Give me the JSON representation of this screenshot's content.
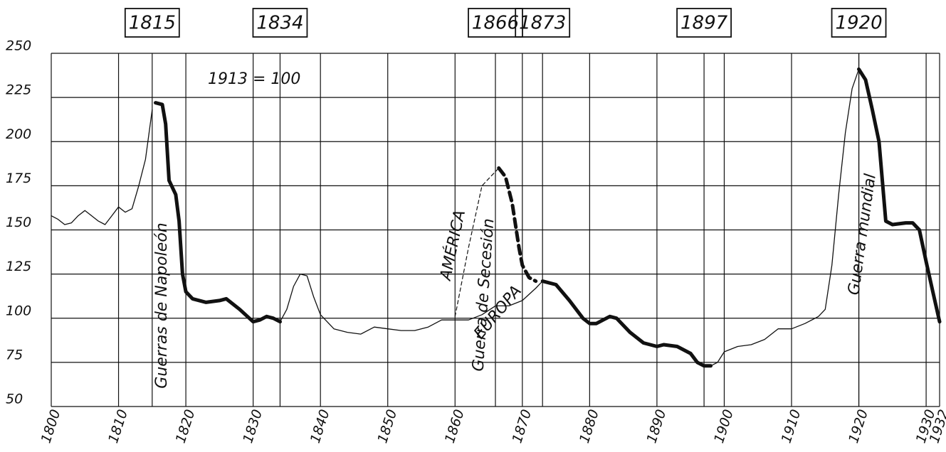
{
  "chart_data": {
    "type": "line",
    "xlim": [
      1800,
      1932
    ],
    "ylim": [
      50,
      250
    ],
    "xticks": [
      1800,
      1810,
      1820,
      1830,
      1840,
      1850,
      1860,
      1870,
      1880,
      1890,
      1900,
      1910,
      1920,
      1930,
      1932
    ],
    "yticks": [
      50,
      75,
      100,
      125,
      150,
      175,
      200,
      225,
      250
    ],
    "xmarkers": [
      1815,
      1834,
      1866,
      1873,
      1897,
      1920
    ],
    "grid": true,
    "annotations": [
      "1913 = 100",
      "Guerras de Napoleón",
      "AMÉRICA",
      "EUROPA",
      "Guerra de Secesión",
      "Guerra mundial"
    ],
    "series": [
      {
        "color": "#111",
        "width": 1.3,
        "dash": false,
        "x": [
          1800,
          1801,
          1802,
          1803,
          1804,
          1805,
          1806,
          1807,
          1808,
          1809,
          1810,
          1811,
          1812,
          1813,
          1814,
          1815
        ],
        "values": [
          158,
          156,
          153,
          154,
          158,
          161,
          158,
          155,
          153,
          158,
          163,
          160,
          162,
          175,
          190,
          218
        ]
      },
      {
        "color": "#111",
        "width": 5,
        "dash": false,
        "x": [
          1815.5,
          1816.5,
          1817,
          1817.5,
          1818.5,
          1819,
          1819.5,
          1820,
          1821,
          1823,
          1825,
          1826,
          1828,
          1830,
          1831,
          1832,
          1833,
          1834
        ],
        "values": [
          222,
          221,
          210,
          178,
          170,
          155,
          125,
          115,
          111,
          109,
          110,
          111,
          105,
          98,
          99,
          101,
          100,
          98
        ]
      },
      {
        "color": "#111",
        "width": 1.3,
        "dash": false,
        "x": [
          1834,
          1835,
          1836,
          1837,
          1838,
          1839,
          1840,
          1841,
          1842,
          1844,
          1846,
          1848,
          1850,
          1852,
          1854,
          1856,
          1858,
          1860,
          1862,
          1864,
          1866,
          1868,
          1870,
          1872,
          1873
        ],
        "values": [
          98,
          105,
          118,
          125,
          124,
          112,
          102,
          98,
          94,
          92,
          91,
          95,
          94,
          93,
          93,
          95,
          99,
          99,
          99,
          102,
          107,
          107,
          110,
          117,
          121
        ]
      },
      {
        "color": "#111",
        "width": 5,
        "dash": false,
        "x": [
          1873,
          1875,
          1877,
          1879,
          1880,
          1881,
          1882,
          1883,
          1884,
          1886,
          1888,
          1890,
          1891,
          1893,
          1895,
          1896,
          1897,
          1898
        ],
        "values": [
          121,
          119,
          110,
          100,
          97,
          97,
          99,
          101,
          100,
          92,
          86,
          84,
          85,
          84,
          80,
          75,
          73,
          73
        ]
      },
      {
        "color": "#111",
        "width": 1.3,
        "dash": false,
        "x": [
          1898,
          1899,
          1900,
          1902,
          1904,
          1906,
          1908,
          1910,
          1912,
          1914,
          1915,
          1916,
          1917,
          1918,
          1919,
          1920
        ],
        "values": [
          73,
          75,
          81,
          84,
          85,
          88,
          94,
          94,
          97,
          101,
          105,
          130,
          170,
          205,
          230,
          241
        ]
      },
      {
        "color": "#111",
        "width": 5,
        "dash": false,
        "x": [
          1920,
          1921,
          1922,
          1923,
          1924,
          1925,
          1927,
          1928,
          1929,
          1930,
          1931,
          1932
        ],
        "values": [
          241,
          235,
          218,
          200,
          155,
          153,
          154,
          154,
          150,
          132,
          115,
          98
        ]
      },
      {
        "color": "#111",
        "width": 5,
        "dash": true,
        "x": [
          1866.5,
          1867.5,
          1868.5,
          1869.5,
          1870,
          1871,
          1872
        ],
        "values": [
          185,
          180,
          165,
          140,
          130,
          123,
          121
        ]
      },
      {
        "color": "#111",
        "width": 1.2,
        "dash": true,
        "x": [
          1860,
          1862,
          1864,
          1866.5
        ],
        "values": [
          101,
          140,
          175,
          185
        ]
      }
    ]
  }
}
